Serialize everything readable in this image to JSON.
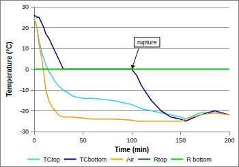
{
  "chart_data": {
    "type": "line",
    "x_label": "Time (min)",
    "y_label": "Temperature (°C)",
    "x": [
      0,
      3,
      5,
      8,
      10,
      12,
      15,
      18,
      20,
      25,
      30,
      40,
      50,
      60,
      80,
      100,
      105,
      110,
      120,
      130,
      140,
      150,
      155,
      170,
      185,
      200
    ],
    "series": [
      {
        "name": "TCtop",
        "color": "#33ccff",
        "values": [
          25,
          20,
          14,
          8,
          5,
          2,
          -1,
          -3,
          -5,
          -8,
          -10,
          -13,
          -14,
          -14,
          -15,
          -17,
          -18,
          -19,
          -20,
          -21,
          -22,
          -23,
          -24,
          -21,
          -21,
          -22
        ]
      },
      {
        "name": "TCbottom",
        "color": "#000080",
        "values": [
          26,
          25,
          25,
          22,
          20,
          17,
          15,
          12,
          10,
          5,
          0,
          0,
          0,
          0,
          0,
          0,
          -3,
          -8,
          -15,
          -20,
          -23,
          -24,
          -25,
          -22,
          -20,
          -22
        ]
      },
      {
        "name": "Air",
        "color": "#ff9900",
        "values": [
          24,
          20,
          12,
          5,
          -2,
          -10,
          -15,
          -18,
          -19,
          -22,
          -23,
          -23,
          -23.5,
          -24,
          -24,
          -24.5,
          -25,
          -25,
          -25,
          -25,
          -25,
          -25,
          -24,
          -22,
          -21,
          -22
        ]
      },
      {
        "name": "Rtop",
        "color": "#006600",
        "values": [
          0,
          0,
          0,
          0,
          0,
          0,
          0,
          0,
          0,
          0,
          0,
          0,
          0,
          0,
          0,
          0,
          0,
          0,
          0,
          0,
          0,
          0,
          0,
          0,
          0,
          0
        ]
      },
      {
        "name": "R bottom",
        "color": "#00cc00",
        "values": [
          0,
          0,
          0,
          0,
          0,
          0,
          0,
          0,
          0,
          0,
          0,
          0,
          0,
          0,
          0,
          0,
          0,
          0,
          0,
          0,
          0,
          0,
          0,
          0,
          0,
          0
        ]
      }
    ],
    "xlim": [
      0,
      200
    ],
    "xticks": [
      0,
      50,
      100,
      150,
      200
    ],
    "ylim": [
      -30,
      30
    ],
    "yticks": [
      -30,
      -20,
      -10,
      0,
      10,
      20,
      30
    ],
    "grid": true,
    "legend": "bottom",
    "annotations": [
      {
        "text": "rupture",
        "x": 100,
        "y": 0
      }
    ]
  }
}
